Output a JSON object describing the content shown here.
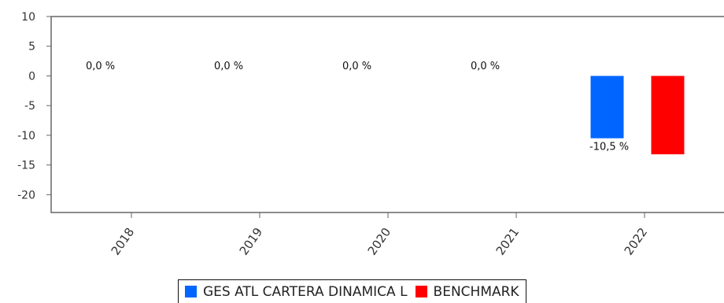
{
  "chart_data": {
    "type": "bar",
    "categories": [
      "2018",
      "2019",
      "2020",
      "2021",
      "2022"
    ],
    "series": [
      {
        "name": "GES ATL CARTERA DINAMICA L",
        "color": "#0066ff",
        "values": [
          0.0,
          0.0,
          0.0,
          0.0,
          -10.5
        ],
        "labels": [
          "0,0 %",
          "0,0 %",
          "0,0 %",
          "0,0 %",
          "-10,5 %"
        ]
      },
      {
        "name": "BENCHMARK",
        "color": "#ff0000",
        "values": [
          null,
          null,
          null,
          null,
          -13.2
        ]
      }
    ],
    "yticks": [
      "10",
      "5",
      "0",
      "-5",
      "-10",
      "-15",
      "-20"
    ],
    "ylim": [
      -23,
      10
    ],
    "legend_position": "bottom"
  }
}
